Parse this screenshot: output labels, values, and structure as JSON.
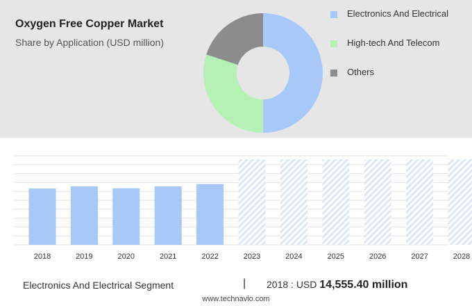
{
  "header": {
    "title": "Oxygen Free Copper Market",
    "subtitle": "Share by Application (USD million)"
  },
  "chart_data": [
    {
      "type": "pie",
      "style": "donut",
      "title": "Oxygen Free Copper Market",
      "subtitle": "Share by Application (USD million)",
      "legend_position": "right",
      "slices": [
        {
          "label": "Electronics And Electrical",
          "value": 50,
          "color": "#a8c8fa"
        },
        {
          "label": "High-tech And Telecom",
          "value": 30,
          "color": "#b5f0b5"
        },
        {
          "label": "Others",
          "value": 20,
          "color": "#8c8c8c"
        }
      ]
    },
    {
      "type": "bar",
      "categories": [
        "2018",
        "2019",
        "2020",
        "2021",
        "2022",
        "2023",
        "2024",
        "2025",
        "2026",
        "2027",
        "2028"
      ],
      "values": [
        14555.4,
        15100,
        14600,
        15100,
        15700,
        null,
        null,
        null,
        null,
        null,
        null
      ],
      "forecast_categories": [
        "2023",
        "2024",
        "2025",
        "2026",
        "2027",
        "2028"
      ],
      "forecast_color": "#dce6f8",
      "color": "#a8c8fa",
      "ylim": [
        0,
        23000
      ],
      "grid": true
    }
  ],
  "footer": {
    "segment": "Electronics And Electrical Segment",
    "separator": "|",
    "year_prefix": "2018 : USD",
    "value": "14,555.40 million",
    "url": "www.technavio.com"
  }
}
